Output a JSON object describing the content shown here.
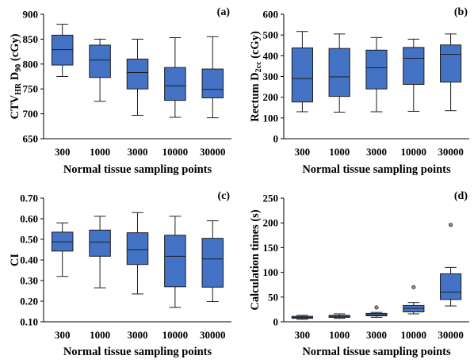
{
  "chart_data": [
    {
      "type": "box",
      "panel": "(a)",
      "ylabel_parts": [
        [
          "CTV",
          ""
        ],
        [
          "HR",
          "sub"
        ],
        [
          " D",
          ""
        ],
        [
          "90",
          "sub"
        ],
        [
          " (cGy)",
          ""
        ]
      ],
      "xlabel": "Normal tissue sampling points",
      "categories": [
        "300",
        "1000",
        "3000",
        "10000",
        "30000"
      ],
      "ylim": [
        650,
        900
      ],
      "yticks": [
        "650",
        "700",
        "750",
        "800",
        "850",
        "900"
      ],
      "boxes": [
        {
          "min": 775,
          "q1": 798,
          "median": 829,
          "q3": 858,
          "max": 880,
          "outliers": []
        },
        {
          "min": 725,
          "q1": 773,
          "median": 808,
          "q3": 838,
          "max": 850,
          "outliers": []
        },
        {
          "min": 697,
          "q1": 750,
          "median": 783,
          "q3": 810,
          "max": 850,
          "outliers": []
        },
        {
          "min": 693,
          "q1": 727,
          "median": 756,
          "q3": 793,
          "max": 853,
          "outliers": []
        },
        {
          "min": 692,
          "q1": 732,
          "median": 749,
          "q3": 790,
          "max": 855,
          "outliers": []
        }
      ]
    },
    {
      "type": "box",
      "panel": "(b)",
      "ylabel_parts": [
        [
          "Rectum D",
          ""
        ],
        [
          "2cc",
          "sub"
        ],
        [
          " (cGy)",
          ""
        ]
      ],
      "xlabel": "Normal tissue sampling points",
      "categories": [
        "300",
        "1000",
        "3000",
        "10000",
        "30000"
      ],
      "ylim": [
        0,
        600
      ],
      "yticks": [
        "0",
        "100",
        "200",
        "300",
        "400",
        "500",
        "600"
      ],
      "boxes": [
        {
          "min": 130,
          "q1": 177,
          "median": 290,
          "q3": 438,
          "max": 517,
          "outliers": []
        },
        {
          "min": 128,
          "q1": 204,
          "median": 298,
          "q3": 435,
          "max": 505,
          "outliers": []
        },
        {
          "min": 130,
          "q1": 240,
          "median": 342,
          "q3": 427,
          "max": 488,
          "outliers": []
        },
        {
          "min": 132,
          "q1": 262,
          "median": 388,
          "q3": 440,
          "max": 480,
          "outliers": []
        },
        {
          "min": 135,
          "q1": 273,
          "median": 407,
          "q3": 452,
          "max": 505,
          "outliers": []
        }
      ]
    },
    {
      "type": "box",
      "panel": "(c)",
      "ylabel_parts": [
        [
          "CI",
          ""
        ]
      ],
      "xlabel": "Normal tissue sampling points",
      "categories": [
        "300",
        "1000",
        "3000",
        "10000",
        "30000"
      ],
      "ylim": [
        0.1,
        0.7
      ],
      "yticks": [
        "0.10",
        "0.20",
        "0.30",
        "0.40",
        "0.50",
        "0.60",
        "0.70"
      ],
      "boxes": [
        {
          "min": 0.32,
          "q1": 0.443,
          "median": 0.488,
          "q3": 0.535,
          "max": 0.58,
          "outliers": []
        },
        {
          "min": 0.265,
          "q1": 0.418,
          "median": 0.487,
          "q3": 0.545,
          "max": 0.612,
          "outliers": []
        },
        {
          "min": 0.235,
          "q1": 0.378,
          "median": 0.45,
          "q3": 0.532,
          "max": 0.63,
          "outliers": []
        },
        {
          "min": 0.17,
          "q1": 0.27,
          "median": 0.418,
          "q3": 0.52,
          "max": 0.612,
          "outliers": []
        },
        {
          "min": 0.198,
          "q1": 0.268,
          "median": 0.405,
          "q3": 0.505,
          "max": 0.59,
          "outliers": []
        }
      ]
    },
    {
      "type": "box",
      "panel": "(d)",
      "ylabel_parts": [
        [
          "Calculation times (s)",
          ""
        ]
      ],
      "xlabel": "Normal tissue sampling points",
      "categories": [
        "300",
        "1000",
        "3000",
        "10000",
        "30000"
      ],
      "ylim": [
        0,
        250
      ],
      "yticks": [
        "0",
        "50",
        "100",
        "150",
        "200",
        "250"
      ],
      "boxes": [
        {
          "min": 5,
          "q1": 7,
          "median": 9,
          "q3": 11,
          "max": 13,
          "outliers": []
        },
        {
          "min": 7,
          "q1": 9,
          "median": 11,
          "q3": 13,
          "max": 16,
          "outliers": []
        },
        {
          "min": 9,
          "q1": 12,
          "median": 14,
          "q3": 17,
          "max": 19,
          "outliers": [
            29
          ]
        },
        {
          "min": 16,
          "q1": 20,
          "median": 27,
          "q3": 33,
          "max": 39,
          "outliers": [
            70
          ]
        },
        {
          "min": 32,
          "q1": 45,
          "median": 60,
          "q3": 97,
          "max": 110,
          "outliers": [
            196
          ]
        }
      ]
    }
  ]
}
